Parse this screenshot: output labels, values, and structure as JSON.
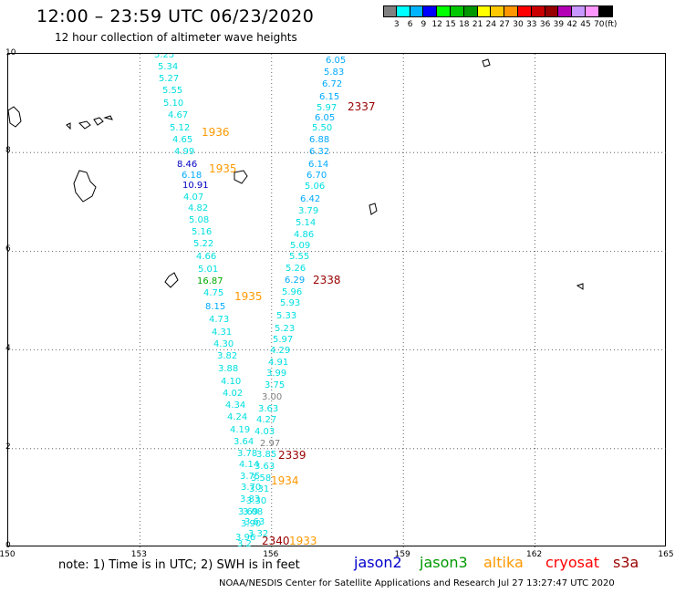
{
  "header": {
    "title": "12:00 – 23:59 UTC 06/23/2020",
    "subtitle": "12 hour collection of altimeter wave heights"
  },
  "legend": {
    "colors": [
      "#808080",
      "#00ffff",
      "#00b4ff",
      "#0000ff",
      "#00ff00",
      "#00c800",
      "#009600",
      "#ffff00",
      "#ffc800",
      "#ff9600",
      "#ff0000",
      "#c80000",
      "#960000",
      "#b400b4",
      "#c896ff",
      "#ff96ff",
      "#000000"
    ],
    "labels": [
      "3",
      "6",
      "9",
      "12",
      "15",
      "18",
      "21",
      "24",
      "27",
      "30",
      "33",
      "36",
      "39",
      "42",
      "45",
      "70",
      "(ft)"
    ]
  },
  "axes": {
    "y_labels": [
      "10",
      "8",
      "6",
      "4",
      "2",
      "0"
    ],
    "x_labels": [
      "150",
      "153",
      "156",
      "159",
      "162",
      "165"
    ]
  },
  "tracks": [
    {
      "label": "1936",
      "color": "#ff9900",
      "points": [
        {
          "v": "5.25",
          "c": "#00e0e0"
        },
        {
          "v": "5.34",
          "c": "#00e0e0"
        },
        {
          "v": "5.27",
          "c": "#00e0e0"
        },
        {
          "v": "5.55",
          "c": "#00e0e0"
        },
        {
          "v": "5.10",
          "c": "#00e0e0"
        },
        {
          "v": "4.67",
          "c": "#00e0e0"
        },
        {
          "v": "5.12",
          "c": "#00e0e0"
        },
        {
          "v": "4.65",
          "c": "#00e0e0"
        },
        {
          "v": "4.99",
          "c": "#00e0e0"
        },
        {
          "v": "8.46",
          "c": "#0000c0"
        },
        {
          "v": "6.18",
          "c": "#00aaff"
        },
        {
          "v": "10.91",
          "c": "#0000c0"
        },
        {
          "v": "4.07",
          "c": "#00e0e0"
        },
        {
          "v": "4.82",
          "c": "#00e0e0"
        },
        {
          "v": "5.08",
          "c": "#00e0e0"
        },
        {
          "v": "5.16",
          "c": "#00e0e0"
        },
        {
          "v": "5.22",
          "c": "#00e0e0"
        },
        {
          "v": "4.66",
          "c": "#00e0e0"
        },
        {
          "v": "5.01",
          "c": "#00e0e0"
        },
        {
          "v": "16.87",
          "c": "#00aa00"
        },
        {
          "v": "4.75",
          "c": "#00e0e0"
        },
        {
          "v": "8.15",
          "c": "#00aaff"
        },
        {
          "v": "4.73",
          "c": "#00e0e0"
        },
        {
          "v": "4.31",
          "c": "#00e0e0"
        },
        {
          "v": "4.30",
          "c": "#00e0e0"
        },
        {
          "v": "3.82",
          "c": "#00e0e0"
        },
        {
          "v": "3.88",
          "c": "#00e0e0"
        },
        {
          "v": "4.10",
          "c": "#00e0e0"
        },
        {
          "v": "4.02",
          "c": "#00e0e0"
        },
        {
          "v": "4.34",
          "c": "#00e0e0"
        },
        {
          "v": "4.24",
          "c": "#00e0e0"
        },
        {
          "v": "4.19",
          "c": "#00e0e0"
        },
        {
          "v": "3.64",
          "c": "#00e0e0"
        },
        {
          "v": "3.78",
          "c": "#00e0e0"
        },
        {
          "v": "4.14",
          "c": "#00e0e0"
        },
        {
          "v": "3.75",
          "c": "#00e0e0"
        },
        {
          "v": "3.70",
          "c": "#00e0e0"
        },
        {
          "v": "3.83",
          "c": "#00e0e0"
        },
        {
          "v": "3.69",
          "c": "#00e0e0"
        },
        {
          "v": "3.90",
          "c": "#00e0e0"
        },
        {
          "v": "3.96",
          "c": "#00e0e0"
        }
      ]
    },
    {
      "label": "2337",
      "color": "#990000",
      "points": [
        {
          "v": "6.05",
          "c": "#00aaff"
        },
        {
          "v": "5.83",
          "c": "#00aaff"
        },
        {
          "v": "6.72",
          "c": "#00aaff"
        },
        {
          "v": "6.15",
          "c": "#00aaff"
        },
        {
          "v": "5.97",
          "c": "#00e0e0"
        },
        {
          "v": "6.05",
          "c": "#00aaff"
        },
        {
          "v": "5.50",
          "c": "#00e0e0"
        },
        {
          "v": "6.88",
          "c": "#00aaff"
        },
        {
          "v": "6.32",
          "c": "#00aaff"
        },
        {
          "v": "6.14",
          "c": "#00aaff"
        },
        {
          "v": "6.70",
          "c": "#00aaff"
        },
        {
          "v": "5.06",
          "c": "#00e0e0"
        },
        {
          "v": "6.42",
          "c": "#00aaff"
        },
        {
          "v": "3.79",
          "c": "#00e0e0"
        },
        {
          "v": "5.14",
          "c": "#00e0e0"
        },
        {
          "v": "4.86",
          "c": "#00e0e0"
        },
        {
          "v": "5.09",
          "c": "#00e0e0"
        },
        {
          "v": "5.55",
          "c": "#00e0e0"
        },
        {
          "v": "5.26",
          "c": "#00e0e0"
        },
        {
          "v": "6.29",
          "c": "#00aaff"
        },
        {
          "v": "5.96",
          "c": "#00e0e0"
        },
        {
          "v": "5.93",
          "c": "#00e0e0"
        },
        {
          "v": "5.33",
          "c": "#00e0e0"
        },
        {
          "v": "5.23",
          "c": "#00e0e0"
        },
        {
          "v": "5.97",
          "c": "#00e0e0"
        },
        {
          "v": "4.29",
          "c": "#00e0e0"
        },
        {
          "v": "4.91",
          "c": "#00e0e0"
        },
        {
          "v": "3.99",
          "c": "#00e0e0"
        },
        {
          "v": "3.75",
          "c": "#00e0e0"
        },
        {
          "v": "3.00",
          "c": "#808080"
        },
        {
          "v": "3.63",
          "c": "#00e0e0"
        },
        {
          "v": "4.27",
          "c": "#00e0e0"
        },
        {
          "v": "4.03",
          "c": "#00e0e0"
        },
        {
          "v": "2.97",
          "c": "#808080"
        },
        {
          "v": "3.85",
          "c": "#00e0e0"
        },
        {
          "v": "3.63",
          "c": "#00e0e0"
        },
        {
          "v": "3.58",
          "c": "#00e0e0"
        },
        {
          "v": "3.31",
          "c": "#00e0e0"
        },
        {
          "v": "3.30",
          "c": "#00e0e0"
        },
        {
          "v": "3.08",
          "c": "#00e0e0"
        },
        {
          "v": "3.63",
          "c": "#00e0e0"
        },
        {
          "v": "3.32",
          "c": "#00e0e0"
        },
        {
          "v": "3.2",
          "c": "#00e0e0"
        }
      ]
    }
  ],
  "track_labels": [
    {
      "text": "1936",
      "color": "#ff9900"
    },
    {
      "text": "1935",
      "color": "#ff9900"
    },
    {
      "text": "1935",
      "color": "#ff9900"
    },
    {
      "text": "1934",
      "color": "#ff9900"
    },
    {
      "text": "1933",
      "color": "#ff9900"
    },
    {
      "text": "2337",
      "color": "#990000"
    },
    {
      "text": "2338",
      "color": "#990000"
    },
    {
      "text": "2339",
      "color": "#990000"
    },
    {
      "text": "2340",
      "color": "#990000"
    }
  ],
  "footer": {
    "note": "note:  1) Time is in UTC;  2) SWH is in feet",
    "satellites": [
      {
        "name": "jason2",
        "color": "#0000cc"
      },
      {
        "name": "jason3",
        "color": "#009900"
      },
      {
        "name": "altika",
        "color": "#ff9900"
      },
      {
        "name": "cryosat",
        "color": "#ff0000"
      },
      {
        "name": "s3a",
        "color": "#990000"
      }
    ],
    "credit": "NOAA/NESDIS Center for Satellite Applications and Research    Jul 27 13:27:47 UTC 2020"
  }
}
